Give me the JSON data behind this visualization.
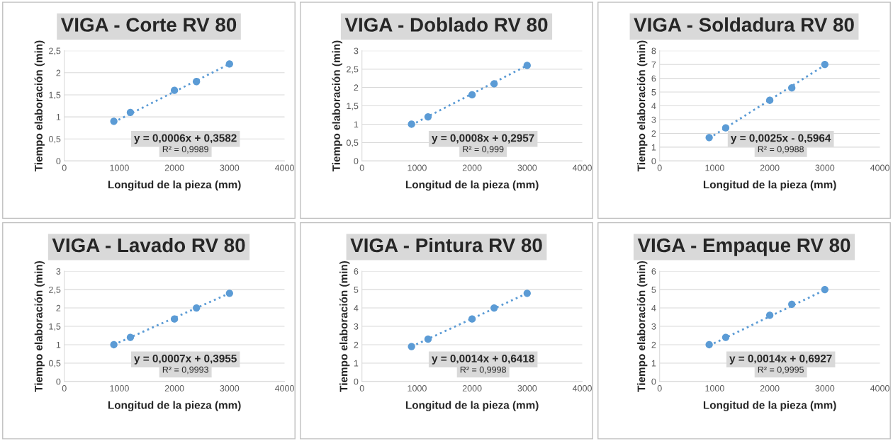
{
  "chart_data": [
    {
      "type": "scatter",
      "title": "VIGA - Corte RV 80",
      "xlabel": "Longitud de la pieza (mm)",
      "ylabel": "Tiempo elaboración (min)",
      "grid": "y",
      "xlim": [
        0,
        4000
      ],
      "xticks": [
        0,
        1000,
        2000,
        3000,
        4000
      ],
      "ylim": [
        0,
        2.5
      ],
      "yticks": [
        0,
        {
          "value": 0.5,
          "label": "0,5"
        },
        1,
        {
          "value": 1.5,
          "label": "1,5"
        },
        2,
        {
          "value": 2.5,
          "label": "2,5"
        }
      ],
      "annotations": [
        "y = 0,0006x + 0,3582",
        "R² = 0,9989"
      ],
      "series": [
        {
          "marker": "circle",
          "color": "#5b9bd5",
          "x": [
            900,
            1200,
            2000,
            2400,
            3000
          ],
          "values": [
            0.9,
            1.1,
            1.6,
            1.8,
            2.2
          ]
        },
        {
          "type": "line",
          "line_style": "dotted",
          "color": "#5b9bd5",
          "x": [
            900,
            3000
          ],
          "values": [
            0.88,
            2.2
          ]
        }
      ]
    },
    {
      "type": "scatter",
      "title": "VIGA - Doblado RV 80",
      "xlabel": "Longitud de la pieza (mm)",
      "ylabel": "Tiempo elaboración (min)",
      "grid": "y",
      "xlim": [
        0,
        4000
      ],
      "xticks": [
        0,
        1000,
        2000,
        3000,
        4000
      ],
      "ylim": [
        0,
        3
      ],
      "yticks": [
        0,
        {
          "value": 0.5,
          "label": "0,5"
        },
        1,
        {
          "value": 1.5,
          "label": "1,5"
        },
        2,
        {
          "value": 2.5,
          "label": "2,5"
        },
        3
      ],
      "annotations": [
        "y = 0,0008x + 0,2957",
        "R² = 0,999"
      ],
      "series": [
        {
          "marker": "circle",
          "color": "#5b9bd5",
          "x": [
            900,
            1200,
            2000,
            2400,
            3000
          ],
          "values": [
            1.0,
            1.2,
            1.8,
            2.1,
            2.6
          ]
        },
        {
          "type": "line",
          "line_style": "dotted",
          "color": "#5b9bd5",
          "x": [
            900,
            3000
          ],
          "values": [
            0.98,
            2.6
          ]
        }
      ]
    },
    {
      "type": "scatter",
      "title": "VIGA - Soldadura RV 80",
      "xlabel": "Longitud de la pieza (mm)",
      "ylabel": "Tiempo elaboración (min)",
      "grid": "y",
      "xlim": [
        0,
        4000
      ],
      "xticks": [
        0,
        1000,
        2000,
        3000,
        4000
      ],
      "ylim": [
        0,
        8
      ],
      "yticks": [
        0,
        1,
        2,
        3,
        4,
        5,
        6,
        7,
        8
      ],
      "annotations": [
        "y = 0,0025x - 0,5964",
        "R² = 0,9988"
      ],
      "series": [
        {
          "marker": "circle",
          "color": "#5b9bd5",
          "x": [
            900,
            1200,
            2000,
            2400,
            3000
          ],
          "values": [
            1.7,
            2.4,
            4.4,
            5.3,
            7.0
          ]
        },
        {
          "type": "line",
          "line_style": "dotted",
          "color": "#5b9bd5",
          "x": [
            900,
            3000
          ],
          "values": [
            1.65,
            6.95
          ]
        }
      ]
    },
    {
      "type": "scatter",
      "title": "VIGA - Lavado RV 80",
      "xlabel": "Longitud de la pieza (mm)",
      "ylabel": "Tiempo elaboración (min)",
      "grid": "y",
      "xlim": [
        0,
        4000
      ],
      "xticks": [
        0,
        1000,
        2000,
        3000,
        4000
      ],
      "ylim": [
        0,
        3
      ],
      "yticks": [
        0,
        {
          "value": 0.5,
          "label": "0,5"
        },
        1,
        {
          "value": 1.5,
          "label": "1,5"
        },
        2,
        {
          "value": 2.5,
          "label": "2,5"
        },
        3
      ],
      "annotations": [
        "y = 0,0007x + 0,3955",
        "R² = 0,9993"
      ],
      "series": [
        {
          "marker": "circle",
          "color": "#5b9bd5",
          "x": [
            900,
            1200,
            2000,
            2400,
            3000
          ],
          "values": [
            1.0,
            1.2,
            1.7,
            2.0,
            2.4
          ]
        },
        {
          "type": "line",
          "line_style": "dotted",
          "color": "#5b9bd5",
          "x": [
            900,
            3000
          ],
          "values": [
            1.0,
            2.4
          ]
        }
      ]
    },
    {
      "type": "scatter",
      "title": "VIGA - Pintura RV 80",
      "xlabel": "Longitud de la pieza (mm)",
      "ylabel": "Tiempo elaboración (min)",
      "grid": "y",
      "xlim": [
        0,
        4000
      ],
      "xticks": [
        0,
        1000,
        2000,
        3000,
        4000
      ],
      "ylim": [
        0,
        6
      ],
      "yticks": [
        0,
        1,
        2,
        3,
        4,
        5,
        6
      ],
      "annotations": [
        "y = 0,0014x + 0,6418",
        "R² = 0,9998"
      ],
      "series": [
        {
          "marker": "circle",
          "color": "#5b9bd5",
          "x": [
            900,
            1200,
            2000,
            2400,
            3000
          ],
          "values": [
            1.9,
            2.3,
            3.4,
            4.0,
            4.8
          ]
        },
        {
          "type": "line",
          "line_style": "dotted",
          "color": "#5b9bd5",
          "x": [
            900,
            3000
          ],
          "values": [
            1.9,
            4.8
          ]
        }
      ]
    },
    {
      "type": "scatter",
      "title": "VIGA - Empaque RV 80",
      "xlabel": "Longitud de la pieza (mm)",
      "ylabel": "Tiempo elaboración (min)",
      "grid": "y",
      "xlim": [
        0,
        4000
      ],
      "xticks": [
        0,
        1000,
        2000,
        3000,
        4000
      ],
      "ylim": [
        0,
        6
      ],
      "yticks": [
        0,
        1,
        2,
        3,
        4,
        5,
        6
      ],
      "annotations": [
        "y = 0,0014x + 0,6927",
        "R² = 0,9995"
      ],
      "series": [
        {
          "marker": "circle",
          "color": "#5b9bd5",
          "x": [
            900,
            1200,
            2000,
            2400,
            3000
          ],
          "values": [
            2.0,
            2.4,
            3.6,
            4.2,
            5.0
          ]
        },
        {
          "type": "line",
          "line_style": "dotted",
          "color": "#5b9bd5",
          "x": [
            900,
            3000
          ],
          "values": [
            1.95,
            4.98
          ]
        }
      ]
    }
  ]
}
